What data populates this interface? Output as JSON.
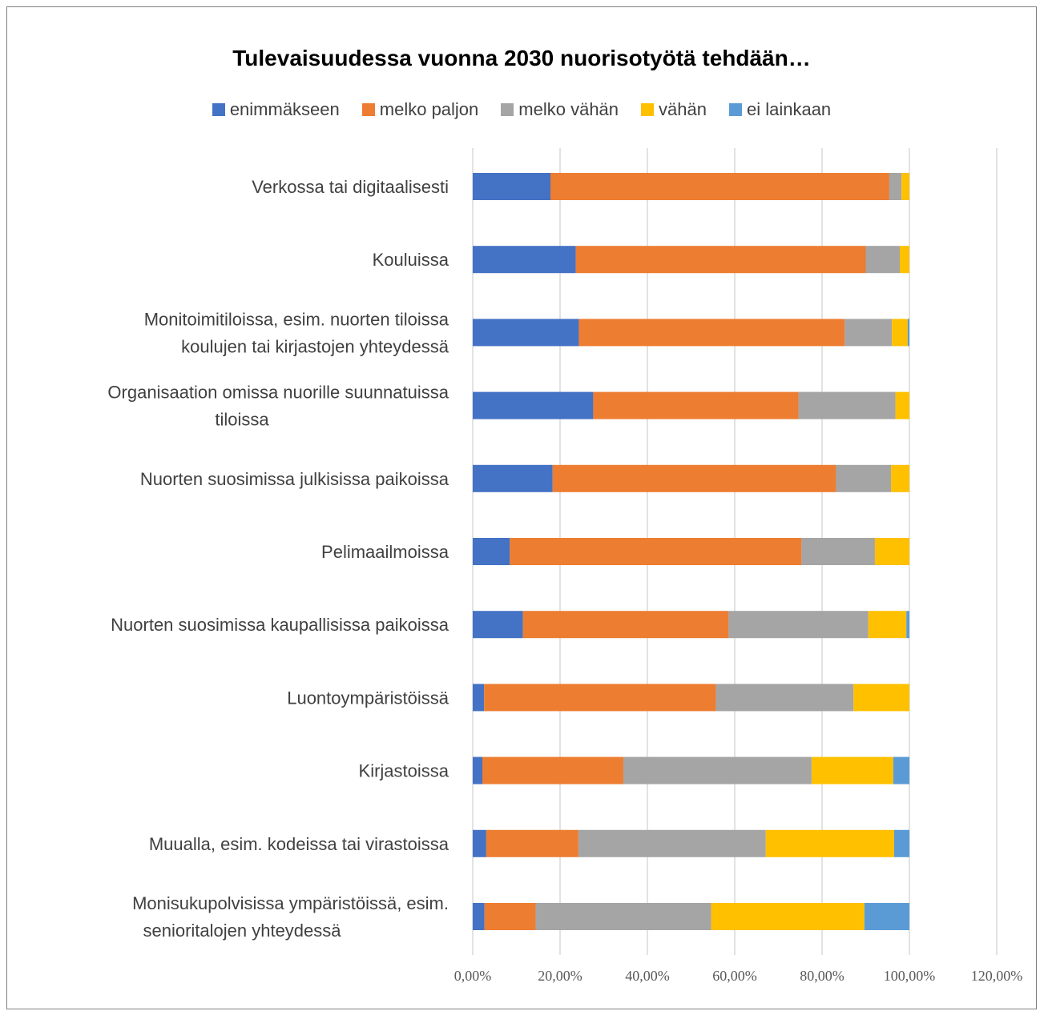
{
  "chart_data": {
    "type": "bar",
    "orientation": "horizontal",
    "stacked": true,
    "title": "Tulevaisuudessa vuonna 2030 nuorisotyötä tehdään…",
    "categories": [
      [
        "Verkossa tai digitaalisesti"
      ],
      [
        "Kouluissa"
      ],
      [
        "Monitoimitiloissa, esim. nuorten tiloissa",
        "koulujen tai kirjastojen yhteydessä"
      ],
      [
        "Organisaation omissa nuorille suunnatuissa",
        "tiloissa"
      ],
      [
        "Nuorten suosimissa julkisissa paikoissa"
      ],
      [
        "Pelimaailmoissa"
      ],
      [
        "Nuorten suosimissa kaupallisissa paikoissa"
      ],
      [
        "Luontoympäristöissä"
      ],
      [
        "Kirjastoissa"
      ],
      [
        "Muualla, esim. kodeissa tai virastoissa"
      ],
      [
        "Monisukupolvisissa ympäristöissä, esim.",
        "senioritalojen yhteydessä"
      ]
    ],
    "series": [
      {
        "name": "enimmäkseen",
        "color": "#4472C4",
        "values": [
          17.8,
          23.6,
          24.3,
          27.6,
          18.3,
          8.5,
          11.5,
          2.6,
          2.2,
          3.1,
          2.7
        ]
      },
      {
        "name": "melko paljon",
        "color": "#ED7D31",
        "values": [
          77.6,
          66.4,
          60.9,
          47.0,
          64.9,
          66.8,
          47.1,
          53.1,
          32.3,
          21.1,
          11.7
        ]
      },
      {
        "name": "melko vähän",
        "color": "#A5A5A5",
        "values": [
          2.8,
          7.8,
          10.8,
          22.2,
          12.6,
          16.8,
          32.0,
          31.5,
          43.1,
          42.9,
          40.2
        ]
      },
      {
        "name": "vähän",
        "color": "#FFC000",
        "values": [
          1.8,
          2.2,
          3.6,
          3.2,
          4.2,
          7.9,
          8.7,
          12.8,
          18.7,
          29.4,
          35.1
        ]
      },
      {
        "name": "ei lainkaan",
        "color": "#5B9BD5",
        "values": [
          0.0,
          0.0,
          0.4,
          0.0,
          0.0,
          0.0,
          0.7,
          0.0,
          3.7,
          3.5,
          10.3
        ]
      }
    ],
    "xlim": [
      0,
      120
    ],
    "xticks": [
      "0,00%",
      "20,00%",
      "40,00%",
      "60,00%",
      "80,00%",
      "100,00%",
      "120,00%"
    ],
    "legend_position": "top",
    "grid": true
  }
}
